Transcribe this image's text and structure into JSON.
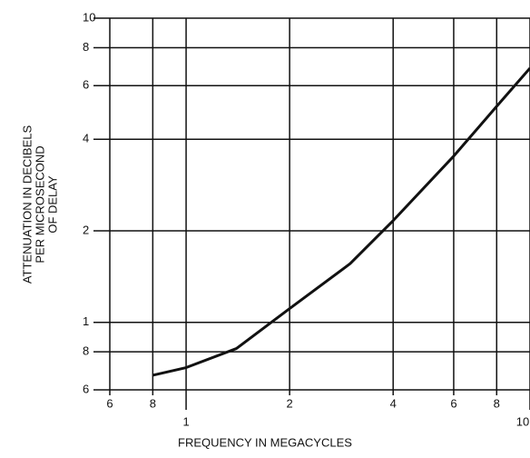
{
  "chart_data": {
    "type": "line",
    "x_label": "FREQUENCY IN MEGACYCLES",
    "y_label": [
      "ATTENUATION IN DECIBELS",
      "PER MICROSECOND",
      "OF DELAY"
    ],
    "x_log": true,
    "y_log": true,
    "grid": true,
    "xlim": [
      0.6,
      10
    ],
    "ylim": [
      0.6,
      10
    ],
    "xticks": [
      {
        "value": 0.6,
        "label": "6"
      },
      {
        "value": 0.8,
        "label": "8"
      },
      1,
      2,
      4,
      6,
      8,
      10
    ],
    "yticks": [
      {
        "value": 0.6,
        "label": "6"
      },
      {
        "value": 0.8,
        "label": "8"
      },
      1,
      2,
      4,
      6,
      8,
      10
    ],
    "series": [
      {
        "color": "#111111",
        "x": [
          0.8,
          1,
          1.4,
          2,
          3,
          4,
          6,
          8,
          10
        ],
        "values": [
          0.67,
          0.71,
          0.82,
          1.11,
          1.56,
          2.16,
          3.52,
          5.13,
          6.85
        ]
      }
    ]
  }
}
